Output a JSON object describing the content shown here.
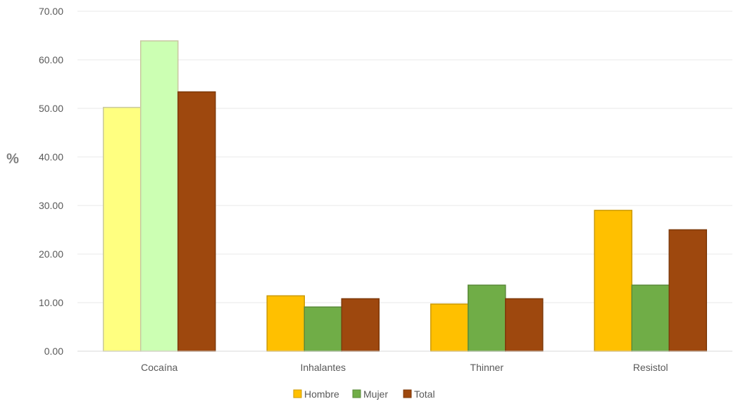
{
  "chart_data": {
    "type": "bar",
    "title": "",
    "xlabel": "",
    "ylabel": "%",
    "ylim": [
      0,
      70
    ],
    "yticks": [
      "0.00",
      "10.00",
      "20.00",
      "30.00",
      "40.00",
      "50.00",
      "60.00",
      "70.00"
    ],
    "grid": true,
    "legend_position": "bottom",
    "categories": [
      "Cocaína",
      "Inhalantes",
      "Thinner",
      "Resistol"
    ],
    "series": [
      {
        "name": "Hombre",
        "values": [
          50.2,
          11.4,
          9.7,
          29.0
        ],
        "color": "#FFC000"
      },
      {
        "name": "Mujer",
        "values": [
          63.9,
          9.1,
          13.6,
          13.6
        ],
        "color": "#70AD47"
      },
      {
        "name": "Total",
        "values": [
          53.4,
          10.8,
          10.8,
          25.0
        ],
        "color": "#9E480E"
      }
    ],
    "highlight": {
      "category_index": 0,
      "colors": [
        "#FFFF80",
        "#CCFFB3"
      ]
    }
  }
}
